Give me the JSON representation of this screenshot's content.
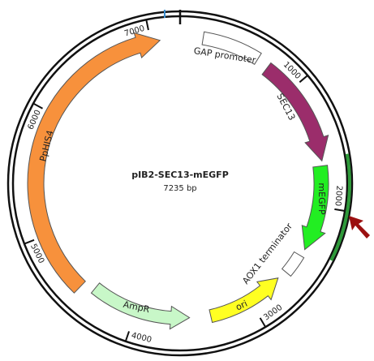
{
  "map": {
    "title": "pIB2-SEC13-mEGFP",
    "size": "7235 bp",
    "features": [
      {
        "label": "GAP promoter"
      },
      {
        "label": "SEC13"
      },
      {
        "label": "mEGFP"
      },
      {
        "label": "AOX1 terminator"
      },
      {
        "label": "ori"
      },
      {
        "label": "AmpR"
      },
      {
        "label": "PpHIS4"
      }
    ],
    "ticks": [
      1000,
      2000,
      3000,
      4000,
      5000,
      6000,
      7000
    ]
  }
}
